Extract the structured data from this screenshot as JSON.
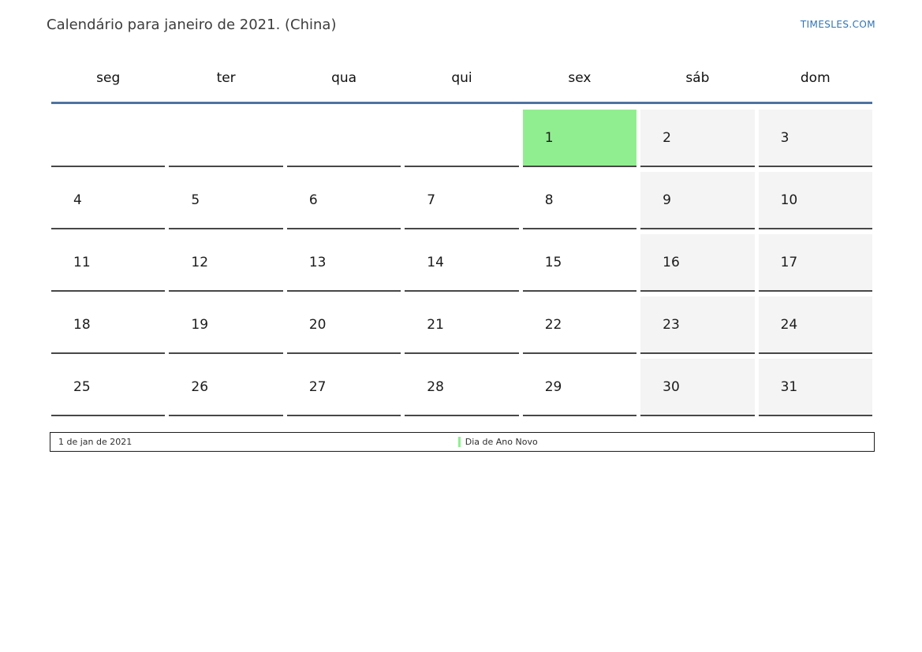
{
  "page": {
    "title": "Calendário para janeiro de 2021. (China)",
    "site_link": "TIMESLES.COM"
  },
  "calendar": {
    "month": "janeiro",
    "year": "2021",
    "region": "China",
    "weekdays": [
      "seg",
      "ter",
      "qua",
      "qui",
      "sex",
      "sáb",
      "dom"
    ],
    "weeks": [
      [
        {
          "day": "",
          "type": "empty"
        },
        {
          "day": "",
          "type": "empty"
        },
        {
          "day": "",
          "type": "empty"
        },
        {
          "day": "",
          "type": "empty"
        },
        {
          "day": "1",
          "type": "holiday"
        },
        {
          "day": "2",
          "type": "weekend"
        },
        {
          "day": "3",
          "type": "weekend"
        }
      ],
      [
        {
          "day": "4",
          "type": "weekday"
        },
        {
          "day": "5",
          "type": "weekday"
        },
        {
          "day": "6",
          "type": "weekday"
        },
        {
          "day": "7",
          "type": "weekday"
        },
        {
          "day": "8",
          "type": "weekday"
        },
        {
          "day": "9",
          "type": "weekend"
        },
        {
          "day": "10",
          "type": "weekend"
        }
      ],
      [
        {
          "day": "11",
          "type": "weekday"
        },
        {
          "day": "12",
          "type": "weekday"
        },
        {
          "day": "13",
          "type": "weekday"
        },
        {
          "day": "14",
          "type": "weekday"
        },
        {
          "day": "15",
          "type": "weekday"
        },
        {
          "day": "16",
          "type": "weekend"
        },
        {
          "day": "17",
          "type": "weekend"
        }
      ],
      [
        {
          "day": "18",
          "type": "weekday"
        },
        {
          "day": "19",
          "type": "weekday"
        },
        {
          "day": "20",
          "type": "weekday"
        },
        {
          "day": "21",
          "type": "weekday"
        },
        {
          "day": "22",
          "type": "weekday"
        },
        {
          "day": "23",
          "type": "weekend"
        },
        {
          "day": "24",
          "type": "weekend"
        }
      ],
      [
        {
          "day": "25",
          "type": "weekday"
        },
        {
          "day": "26",
          "type": "weekday"
        },
        {
          "day": "27",
          "type": "weekday"
        },
        {
          "day": "28",
          "type": "weekday"
        },
        {
          "day": "29",
          "type": "weekday"
        },
        {
          "day": "30",
          "type": "weekend"
        },
        {
          "day": "31",
          "type": "weekend"
        }
      ]
    ]
  },
  "legend": {
    "date_range": "1 de jan de 2021",
    "items": [
      {
        "label": "Dia de Ano Novo",
        "color": "#90ee90"
      }
    ]
  },
  "colors": {
    "holiday_bg": "#90ee90",
    "weekend_bg": "#f4f4f4",
    "header_line": "#4e73a1",
    "cell_border": "#474747",
    "link": "#2f73b6"
  }
}
